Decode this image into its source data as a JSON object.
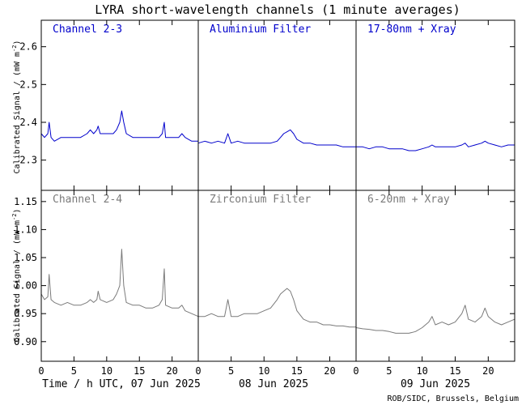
{
  "title": "LYRA short-wavelength channels (1 minute averages)",
  "credit": "ROB/SIDC, Brussels, Belgium",
  "colors": {
    "top": "#0000cc",
    "bottom": "#7a7a7a",
    "frame": "#000000"
  },
  "x_axis": {
    "ticks": [
      0,
      5,
      10,
      15,
      20
    ],
    "tick_labels": [
      "0",
      "5",
      "10",
      "15",
      "20"
    ],
    "day_labels": [
      "Time / h UTC, 07 Jun 2025",
      "08 Jun 2025",
      "09 Jun 2025"
    ]
  },
  "y_label_parts": [
    "Calibrated Signal / (mW m",
    "-2",
    ")"
  ],
  "chart_data": [
    {
      "type": "line",
      "row": "top",
      "ylim": [
        2.22,
        2.67
      ],
      "yticks": [
        2.3,
        2.4,
        2.5,
        2.6
      ],
      "ytick_labels": [
        "2.3",
        "2.4",
        "2.5",
        "2.6"
      ],
      "panel_labels": [
        "Channel 2-3",
        "Aluminium Filter",
        "17-80nm + Xray"
      ],
      "series": [
        {
          "day": "07 Jun 2025",
          "x": [
            0,
            0.5,
            1,
            1.2,
            1.5,
            2,
            3,
            4,
            5,
            6,
            7,
            7.5,
            8,
            8.5,
            8.7,
            9,
            10,
            11,
            11.5,
            12,
            12.3,
            12.6,
            13,
            14,
            15,
            16,
            17,
            18,
            18.5,
            18.8,
            19,
            20,
            21,
            21.5,
            22,
            23,
            24
          ],
          "values": [
            2.37,
            2.36,
            2.37,
            2.4,
            2.36,
            2.35,
            2.36,
            2.36,
            2.36,
            2.36,
            2.37,
            2.38,
            2.37,
            2.38,
            2.39,
            2.37,
            2.37,
            2.37,
            2.38,
            2.4,
            2.43,
            2.4,
            2.37,
            2.36,
            2.36,
            2.36,
            2.36,
            2.36,
            2.37,
            2.4,
            2.36,
            2.36,
            2.36,
            2.37,
            2.36,
            2.35,
            2.35
          ]
        },
        {
          "day": "08 Jun 2025",
          "x": [
            0,
            1,
            2,
            3,
            4,
            4.5,
            5,
            6,
            7,
            8,
            9,
            10,
            11,
            12,
            12.5,
            13,
            13.5,
            14,
            14.5,
            15,
            16,
            17,
            18,
            19,
            20,
            21,
            22,
            23,
            24
          ],
          "values": [
            2.345,
            2.35,
            2.345,
            2.35,
            2.345,
            2.37,
            2.345,
            2.35,
            2.345,
            2.345,
            2.345,
            2.345,
            2.345,
            2.35,
            2.36,
            2.37,
            2.375,
            2.38,
            2.37,
            2.355,
            2.345,
            2.345,
            2.34,
            2.34,
            2.34,
            2.34,
            2.335,
            2.335,
            2.335
          ]
        },
        {
          "day": "09 Jun 2025",
          "x": [
            0,
            1,
            2,
            3,
            4,
            5,
            6,
            7,
            8,
            9,
            10,
            11,
            11.5,
            12,
            13,
            14,
            15,
            16,
            16.5,
            17,
            18,
            19,
            19.5,
            20,
            21,
            22,
            23,
            24
          ],
          "values": [
            2.335,
            2.335,
            2.33,
            2.335,
            2.335,
            2.33,
            2.33,
            2.33,
            2.325,
            2.325,
            2.33,
            2.335,
            2.34,
            2.335,
            2.335,
            2.335,
            2.335,
            2.34,
            2.345,
            2.335,
            2.34,
            2.345,
            2.35,
            2.345,
            2.34,
            2.335,
            2.34,
            2.34
          ]
        }
      ]
    },
    {
      "type": "line",
      "row": "bottom",
      "ylim": [
        0.865,
        1.17
      ],
      "yticks": [
        0.9,
        0.95,
        1.0,
        1.05,
        1.1,
        1.15
      ],
      "ytick_labels": [
        "0.90",
        "0.95",
        "1.00",
        "1.05",
        "1.10",
        "1.15"
      ],
      "panel_labels": [
        "Channel 2-4",
        "Zirconium Filter",
        "6-20nm + Xray"
      ],
      "series": [
        {
          "day": "07 Jun 2025",
          "x": [
            0,
            0.5,
            1,
            1.2,
            1.5,
            2,
            3,
            4,
            5,
            6,
            7,
            7.5,
            8,
            8.5,
            8.7,
            9,
            10,
            11,
            11.5,
            12,
            12.3,
            12.6,
            13,
            14,
            15,
            16,
            17,
            18,
            18.5,
            18.8,
            19,
            20,
            21,
            21.5,
            22,
            23,
            24
          ],
          "values": [
            0.985,
            0.975,
            0.98,
            1.02,
            0.975,
            0.97,
            0.965,
            0.97,
            0.965,
            0.965,
            0.97,
            0.975,
            0.97,
            0.975,
            0.99,
            0.975,
            0.97,
            0.975,
            0.985,
            1.0,
            1.065,
            1.0,
            0.97,
            0.965,
            0.965,
            0.96,
            0.96,
            0.965,
            0.975,
            1.03,
            0.965,
            0.96,
            0.96,
            0.965,
            0.955,
            0.95,
            0.945
          ]
        },
        {
          "day": "08 Jun 2025",
          "x": [
            0,
            1,
            2,
            3,
            4,
            4.5,
            5,
            6,
            7,
            8,
            9,
            10,
            11,
            12,
            12.5,
            13,
            13.5,
            14,
            14.5,
            15,
            16,
            17,
            18,
            19,
            20,
            21,
            22,
            23,
            24
          ],
          "values": [
            0.945,
            0.945,
            0.95,
            0.945,
            0.945,
            0.975,
            0.945,
            0.945,
            0.95,
            0.95,
            0.95,
            0.955,
            0.96,
            0.975,
            0.985,
            0.99,
            0.995,
            0.99,
            0.975,
            0.955,
            0.94,
            0.935,
            0.935,
            0.93,
            0.93,
            0.928,
            0.928,
            0.926,
            0.926
          ]
        },
        {
          "day": "09 Jun 2025",
          "x": [
            0,
            1,
            2,
            3,
            4,
            5,
            6,
            7,
            8,
            9,
            10,
            11,
            11.5,
            12,
            13,
            14,
            15,
            16,
            16.5,
            17,
            18,
            19,
            19.5,
            20,
            21,
            22,
            23,
            24
          ],
          "values": [
            0.925,
            0.923,
            0.922,
            0.92,
            0.92,
            0.918,
            0.915,
            0.915,
            0.915,
            0.918,
            0.925,
            0.935,
            0.945,
            0.93,
            0.935,
            0.93,
            0.935,
            0.95,
            0.965,
            0.94,
            0.935,
            0.945,
            0.96,
            0.945,
            0.935,
            0.93,
            0.935,
            0.94
          ]
        }
      ]
    }
  ]
}
